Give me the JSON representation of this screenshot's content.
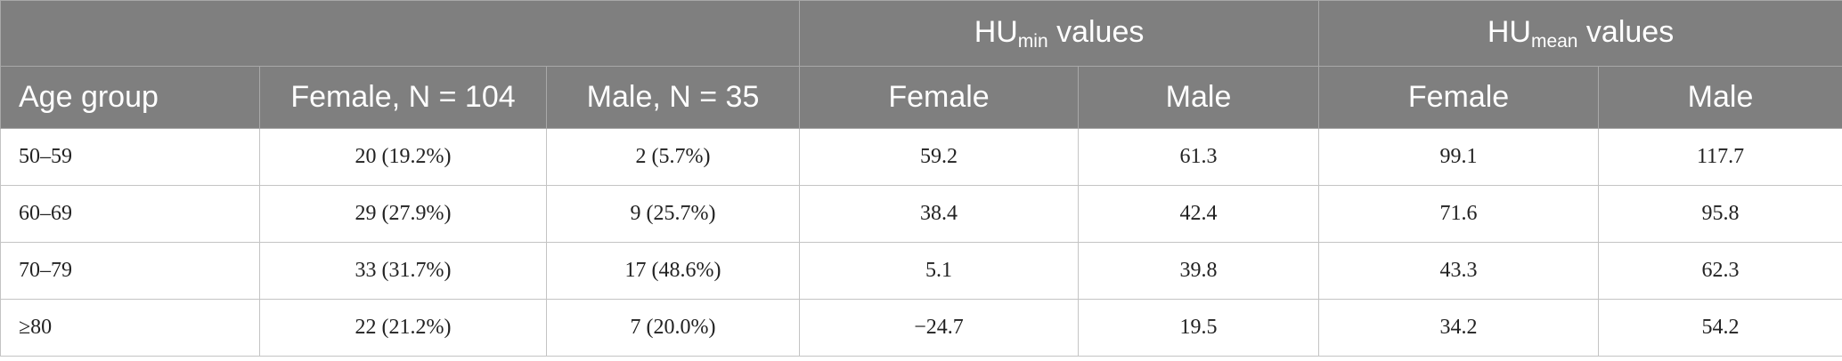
{
  "table": {
    "group_headers": [
      {
        "base": "HU",
        "sub": "min",
        "rest": " values"
      },
      {
        "base": "HU",
        "sub": "mean",
        "rest": " values"
      }
    ],
    "columns": [
      "Age group",
      "Female, N = 104",
      "Male, N = 35",
      "Female",
      "Male",
      "Female",
      "Male"
    ],
    "rows": [
      [
        "50–59",
        "20 (19.2%)",
        "2 (5.7%)",
        "59.2",
        "61.3",
        "99.1",
        "117.7"
      ],
      [
        "60–69",
        "29 (27.9%)",
        "9 (25.7%)",
        "38.4",
        "42.4",
        "71.6",
        "95.8"
      ],
      [
        "70–79",
        "33 (31.7%)",
        "17 (48.6%)",
        "5.1",
        "39.8",
        "43.3",
        "62.3"
      ],
      [
        "≥80",
        "22 (21.2%)",
        "7 (20.0%)",
        "−24.7",
        "19.5",
        "34.2",
        "54.2"
      ]
    ]
  }
}
